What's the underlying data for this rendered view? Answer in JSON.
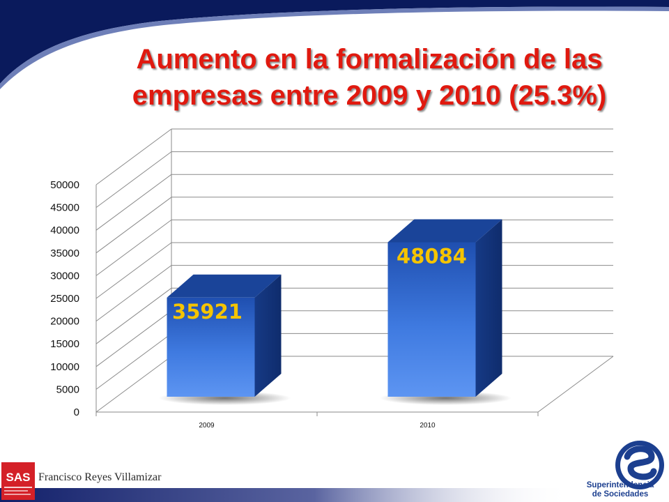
{
  "title": {
    "line1": "Aumento en la formalización de las",
    "line2": "empresas entre 2009 y 2010 (25.3%)"
  },
  "chart_data": {
    "type": "bar",
    "title": "Aumento en la formalización de las empresas entre 2009 y 2010 (25.3%)",
    "categories": [
      "2009",
      "2010"
    ],
    "values": [
      35921,
      48084
    ],
    "data_labels": [
      "35921",
      "48084"
    ],
    "ylim": [
      0,
      50000
    ],
    "yticks": [
      0,
      5000,
      10000,
      15000,
      20000,
      25000,
      30000,
      35000,
      40000,
      45000,
      50000
    ],
    "xlabel": "",
    "ylabel": "",
    "grid": true,
    "legend": "none",
    "style": "3d-column",
    "bar_color": "#3a74d6",
    "label_color": "#f5c400"
  },
  "footer": {
    "author": "Francisco Reyes Villamizar",
    "left_logo_text": "SAS",
    "org_line1": "Superintendencia",
    "org_line2": "de Sociedades"
  },
  "colors": {
    "title": "#e0190f",
    "accent_navy": "#0a1a5c",
    "logo_red": "#d42027",
    "logo_blue": "#1c3f8f"
  }
}
